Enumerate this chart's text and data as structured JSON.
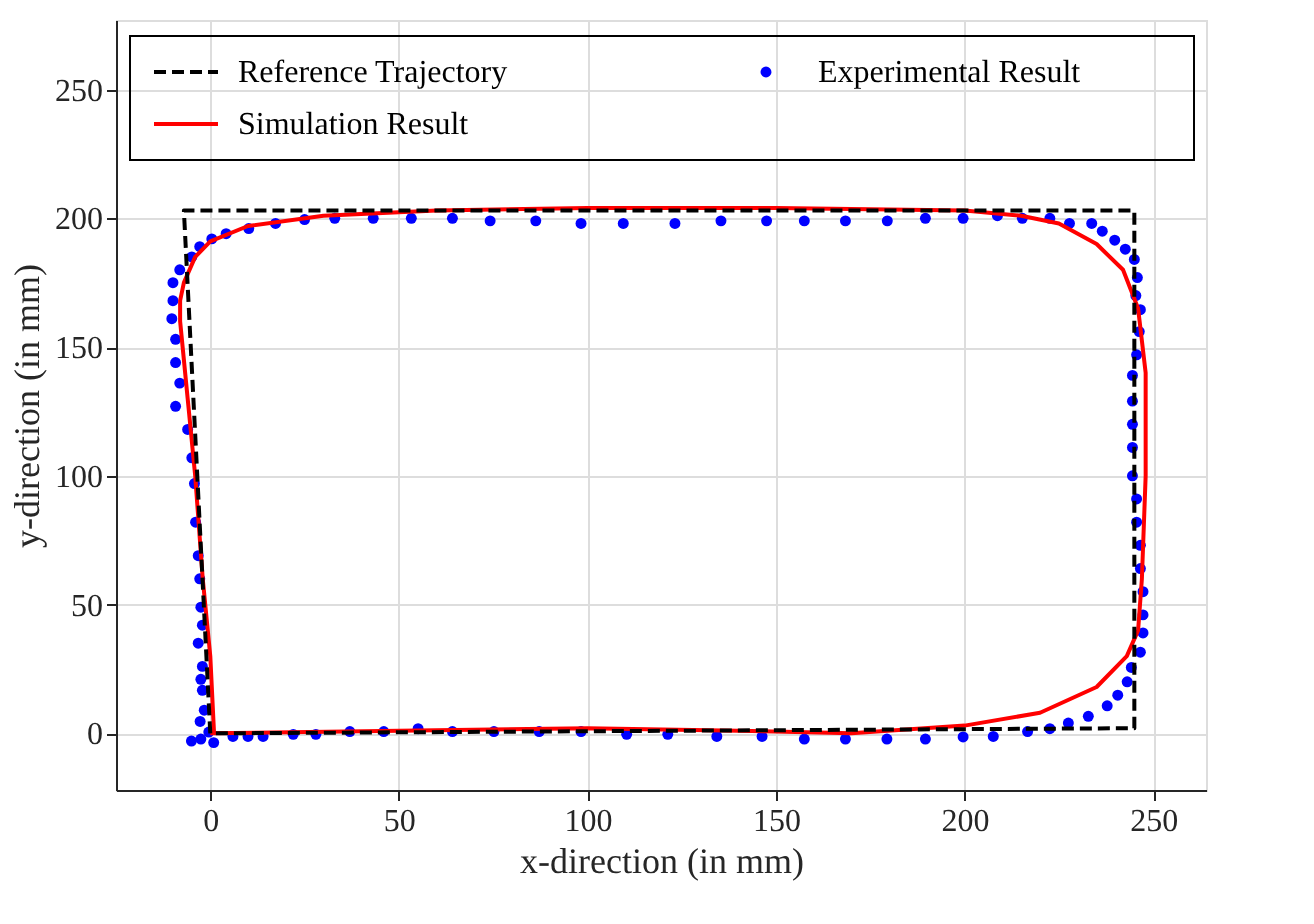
{
  "chart_data": {
    "type": "line",
    "xlabel": "x-direction (in mm)",
    "ylabel": "y-direction (in mm)",
    "xlim": [
      -25,
      264
    ],
    "ylim": [
      -22,
      277
    ],
    "xticks": [
      0,
      50,
      100,
      150,
      200,
      250
    ],
    "yticks": [
      0,
      50,
      100,
      150,
      200,
      250
    ],
    "grid": true,
    "legend": "top",
    "series": [
      {
        "name": "Reference Trajectory",
        "type": "line",
        "line_style": "dashed",
        "color": "#000000",
        "x": [
          0,
          -7,
          245,
          245,
          1
        ],
        "values": [
          0,
          203,
          203,
          2,
          0
        ]
      },
      {
        "name": "Experimental Result",
        "type": "scatter",
        "marker": "circle",
        "color": "#0000ff",
        "x": [
          -5,
          -2.5,
          0.9,
          -0.4,
          -2.7,
          -1.6,
          -2.1,
          -2.5,
          -2.1,
          -3.2,
          -2.1,
          -2.5,
          -2.8,
          -3.2,
          -3.9,
          -4.2,
          -4.9,
          -6,
          -9.2,
          -8.1,
          -9.2,
          -9.2,
          -10.2,
          -9.9,
          -9.9,
          -8.1,
          -4.9,
          -2.8,
          0.4,
          4.2,
          10.2,
          17.3,
          25,
          33,
          43.2,
          53.3,
          64.2,
          74.2,
          86.3,
          98.3,
          109.5,
          123.2,
          135.4,
          147.5,
          157.5,
          168.4,
          179.5,
          189.6,
          199.6,
          208.7,
          215.3,
          222.6,
          227.8,
          233.7,
          236.5,
          239.8,
          242.6,
          245,
          245.8,
          245.4,
          246.6,
          246.3,
          245.6,
          244.5,
          244.5,
          244.5,
          244.5,
          244.5,
          245.6,
          245.6,
          246.6,
          246.6,
          247.3,
          247.3,
          247.3,
          246.6,
          244.2,
          243.1,
          240.6,
          237.8,
          232.8,
          227.5,
          222.6,
          216.7,
          207.6,
          199.6,
          189.6,
          179.4,
          168.4,
          157.5,
          146.3,
          134.3,
          121.3,
          110.4,
          98.3,
          87.2,
          75.2,
          64.2,
          55.1,
          46,
          37,
          28,
          22,
          14,
          10,
          6
        ],
        "values": [
          -3,
          -2.2,
          -3.6,
          0.5,
          4.6,
          9,
          16.7,
          21,
          26,
          35,
          42,
          49,
          60,
          69,
          82,
          97,
          107,
          118,
          127,
          136,
          144,
          153,
          161,
          168,
          175,
          180,
          185,
          189,
          192,
          194,
          196,
          198,
          199.5,
          200,
          200,
          200,
          200,
          199,
          199,
          198,
          198,
          198,
          199,
          199,
          199,
          199,
          199,
          200,
          200,
          201,
          200,
          200,
          198,
          198,
          195,
          191.5,
          188,
          184,
          177,
          170,
          164.5,
          156,
          147,
          139,
          129,
          120,
          111,
          100,
          91,
          82,
          73,
          64,
          55,
          46,
          39,
          31.5,
          25.6,
          20,
          14.8,
          10.7,
          6.6,
          4,
          1.8,
          0.7,
          -1.2,
          -1.4,
          -2.2,
          -2.2,
          -2.2,
          -2.2,
          -1.2,
          -1.2,
          -0.4,
          -0.4,
          0.7,
          0.7,
          0.7,
          0.7,
          1.8,
          0.7,
          0.7,
          -0.4,
          -0.4,
          -1.2,
          -1.2,
          -1.2
        ]
      },
      {
        "name": "Simulation Result",
        "type": "line",
        "line_style": "solid",
        "color": "#ff0000",
        "x": [
          1,
          0,
          -2,
          -4,
          -6,
          -8,
          -8,
          -7,
          -4,
          0,
          10,
          30,
          60,
          100,
          150,
          200,
          215,
          225,
          235,
          242,
          246,
          248,
          248,
          247,
          246,
          243,
          235,
          220,
          200,
          170,
          140,
          100,
          50,
          0
        ],
        "values": [
          0,
          30,
          60,
          100,
          130,
          160,
          168,
          175,
          185,
          191,
          197,
          201,
          203,
          204,
          204,
          203,
          201,
          198,
          190,
          180,
          165,
          140,
          100,
          60,
          40,
          30,
          18,
          8,
          3,
          0,
          1,
          2,
          1,
          0
        ]
      }
    ]
  }
}
